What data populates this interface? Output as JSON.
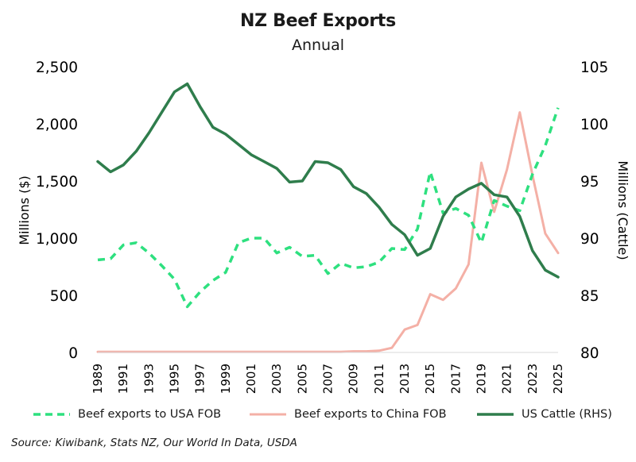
{
  "chart_data": {
    "type": "line",
    "title": "NZ Beef Exports",
    "subtitle": "Annual",
    "ylabel": "Millions ($)",
    "y2label": "Millions (Cattle)",
    "ylim": [
      0,
      2500
    ],
    "y2lim": [
      80,
      105
    ],
    "yticks": [
      "0",
      "500",
      "1,000",
      "1,500",
      "2,000",
      "2,500"
    ],
    "y2ticks": [
      "80",
      "85",
      "90",
      "95",
      "100",
      "105"
    ],
    "x": [
      1989,
      1990,
      1991,
      1992,
      1993,
      1994,
      1995,
      1996,
      1997,
      1998,
      1999,
      2000,
      2001,
      2002,
      2003,
      2004,
      2005,
      2006,
      2007,
      2008,
      2009,
      2010,
      2011,
      2012,
      2013,
      2014,
      2015,
      2016,
      2017,
      2018,
      2019,
      2020,
      2021,
      2022,
      2023,
      2024,
      2025
    ],
    "xticks": [
      "1989",
      "1991",
      "1993",
      "1995",
      "1997",
      "1999",
      "2001",
      "2003",
      "2005",
      "2007",
      "2009",
      "2011",
      "2013",
      "2015",
      "2017",
      "2019",
      "2021",
      "2023",
      "2025"
    ],
    "series": [
      {
        "name": "Beef exports to USA FOB",
        "axis": "left",
        "color": "#2ee07f",
        "style": "dashed",
        "values": [
          810,
          820,
          940,
          960,
          870,
          760,
          640,
          400,
          530,
          630,
          700,
          960,
          1000,
          1000,
          870,
          920,
          840,
          850,
          690,
          780,
          740,
          750,
          790,
          910,
          900,
          1080,
          1580,
          1220,
          1260,
          1200,
          960,
          1330,
          1280,
          1240,
          1560,
          1810,
          2140
        ]
      },
      {
        "name": "Beef exports to China FOB",
        "axis": "left",
        "color": "#f4b0a6",
        "style": "solid",
        "values": [
          5,
          5,
          5,
          5,
          5,
          5,
          5,
          5,
          5,
          5,
          5,
          5,
          5,
          5,
          5,
          5,
          5,
          5,
          5,
          5,
          10,
          10,
          15,
          40,
          200,
          240,
          510,
          460,
          560,
          770,
          1660,
          1230,
          1600,
          2100,
          1550,
          1040,
          870
        ]
      },
      {
        "name": "US Cattle (RHS)",
        "axis": "right",
        "color": "#2f7d4c",
        "style": "solid",
        "values": [
          96.7,
          95.8,
          96.4,
          97.6,
          99.2,
          101.0,
          102.8,
          103.5,
          101.5,
          99.7,
          99.1,
          98.2,
          97.3,
          96.7,
          96.1,
          94.9,
          95.0,
          96.7,
          96.6,
          96.0,
          94.5,
          93.9,
          92.7,
          91.2,
          90.3,
          88.5,
          89.1,
          91.9,
          93.6,
          94.3,
          94.8,
          93.8,
          93.6,
          91.9,
          88.9,
          87.2,
          86.6
        ]
      }
    ],
    "source": "Source: Kiwibank, Stats NZ, Our World In Data, USDA"
  }
}
